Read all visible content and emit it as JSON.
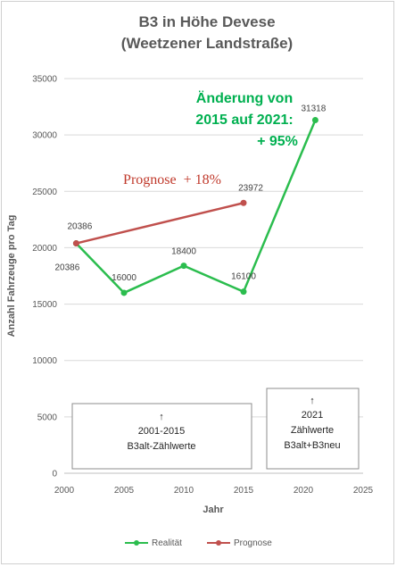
{
  "chart_data": {
    "type": "line",
    "title": [
      "B3 in Höhe Devese",
      "(Weetzener Landstraße)"
    ],
    "xlabel": "Jahr",
    "ylabel": "Anzahl Fahrzeuge pro Tag",
    "xlim": [
      2000,
      2025
    ],
    "ylim": [
      0,
      35000
    ],
    "xticks": [
      "2000",
      "2005",
      "2010",
      "2015",
      "2020",
      "2025"
    ],
    "yticks": [
      "0",
      "5000",
      "10000",
      "15000",
      "20000",
      "25000",
      "30000",
      "35000"
    ],
    "grid": "horizontal",
    "legend_position": "bottom",
    "series": [
      {
        "name": "Realität",
        "color": "#2bbd4e",
        "points": [
          {
            "x": 2001,
            "y": 20386,
            "label": "20386"
          },
          {
            "x": 2005,
            "y": 16000,
            "label": "16000"
          },
          {
            "x": 2010,
            "y": 18400,
            "label": "18400"
          },
          {
            "x": 2015,
            "y": 16100,
            "label": "16100"
          },
          {
            "x": 2021,
            "y": 31318,
            "label": "31318"
          }
        ]
      },
      {
        "name": "Prognose",
        "color": "#c0504d",
        "points": [
          {
            "x": 2001,
            "y": 20386,
            "label": "20386"
          },
          {
            "x": 2015,
            "y": 23972,
            "label": "23972"
          }
        ]
      }
    ],
    "annotations": {
      "change": [
        "Änderung von",
        "2015 auf 2021:",
        "+ 95%"
      ],
      "forecast": "Prognose  + 18%"
    },
    "boxes": [
      {
        "arrow": "↑",
        "lines": [
          "2001-2015",
          "B3alt-Zählwerte"
        ]
      },
      {
        "arrow": "↑",
        "lines": [
          "2021",
          "Zählwerte",
          "B3alt+B3neu"
        ]
      }
    ]
  }
}
